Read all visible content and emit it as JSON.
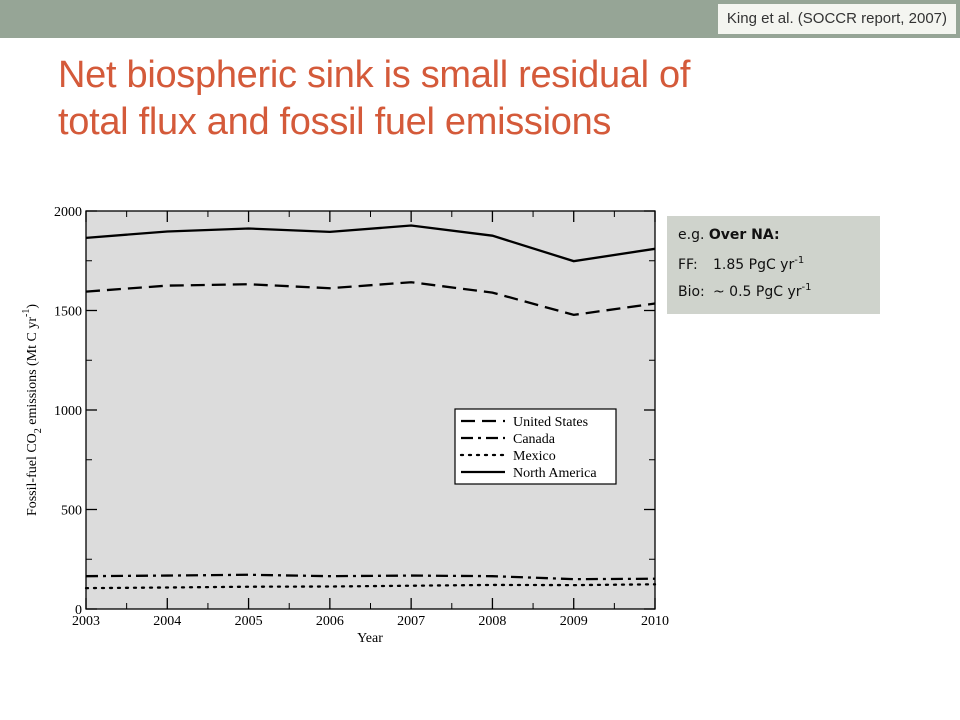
{
  "citation": "King et al. (SOCCR report, 2007)",
  "title": {
    "line1": "Net biospheric sink is small residual of",
    "line2": "total flux and fossil fuel emissions"
  },
  "note": {
    "line1_prefix": "e.g. ",
    "line1_bold": "Over NA:",
    "ff_label": "FF:",
    "ff_value": "1.85 PgC yr",
    "ff_exp": "-1",
    "bio_label": "Bio:",
    "bio_value": "~ 0.5 PgC yr",
    "bio_exp": "-1"
  },
  "colors": {
    "title": "#d45a3a",
    "top_bar": "#96a596",
    "plot_bg": "#dcdcdc",
    "note_bg": "#cfd3cc"
  },
  "chart_data": {
    "type": "line",
    "xlabel": "Year",
    "ylabel_parts": [
      "Fossil-fuel CO",
      "2",
      " emissions (Mt C yr",
      "-1",
      ")"
    ],
    "xlim": [
      2003,
      2010
    ],
    "ylim": [
      0,
      2000
    ],
    "xticks": [
      2003,
      2004,
      2005,
      2006,
      2007,
      2008,
      2009,
      2010
    ],
    "yticks": [
      0,
      500,
      1000,
      1500,
      2000
    ],
    "grid": false,
    "legend_position": "center-right",
    "x": [
      2003,
      2004,
      2005,
      2006,
      2007,
      2008,
      2009,
      2010
    ],
    "series": [
      {
        "name": "United States",
        "dash": "dashed",
        "values": [
          1595,
          1625,
          1632,
          1612,
          1642,
          1590,
          1478,
          1535
        ]
      },
      {
        "name": "Canada",
        "dash": "dashdot",
        "values": [
          165,
          168,
          172,
          165,
          168,
          165,
          150,
          152
        ]
      },
      {
        "name": "Mexico",
        "dash": "dotted",
        "values": [
          105,
          108,
          112,
          113,
          117,
          121,
          120,
          124
        ]
      },
      {
        "name": "North America",
        "dash": "solid",
        "values": [
          1865,
          1897,
          1912,
          1895,
          1927,
          1876,
          1748,
          1810
        ]
      }
    ]
  }
}
